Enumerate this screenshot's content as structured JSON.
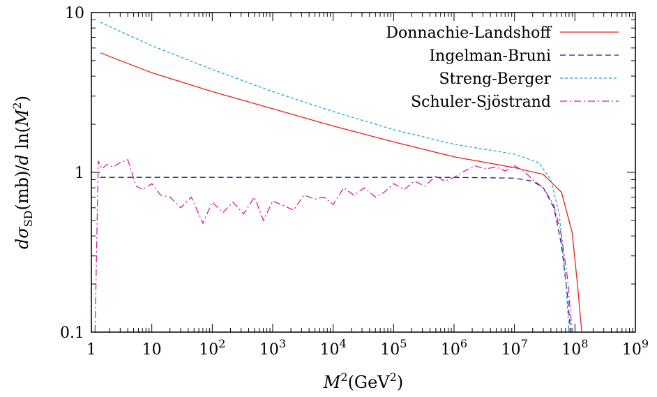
{
  "chart_data": {
    "type": "line",
    "xlabel": "M²(GeV²)",
    "ylabel": "dσSD(mb)/d ln(M²)",
    "x_scale": "log",
    "y_scale": "log",
    "xlim": [
      1,
      1000000000
    ],
    "ylim": [
      0.1,
      10
    ],
    "legend": "top-right",
    "grid": false,
    "x_ticks": [
      {
        "value": 1,
        "label": "1"
      },
      {
        "value": 10,
        "label": "10"
      },
      {
        "value": 100,
        "label": "10",
        "sup": "2"
      },
      {
        "value": 1000,
        "label": "10",
        "sup": "3"
      },
      {
        "value": 10000,
        "label": "10",
        "sup": "4"
      },
      {
        "value": 100000,
        "label": "10",
        "sup": "5"
      },
      {
        "value": 1000000,
        "label": "10",
        "sup": "6"
      },
      {
        "value": 10000000,
        "label": "10",
        "sup": "7"
      },
      {
        "value": 100000000,
        "label": "10",
        "sup": "8"
      },
      {
        "value": 1000000000,
        "label": "10",
        "sup": "9"
      }
    ],
    "y_ticks": [
      {
        "value": 0.1,
        "label": "0.1"
      },
      {
        "value": 1,
        "label": "1"
      },
      {
        "value": 10,
        "label": "10"
      }
    ],
    "series": [
      {
        "name": "Donnachie-Landshoff",
        "color": "#e8201a",
        "dash": "none",
        "x": [
          1.4,
          10,
          100,
          1000,
          10000,
          100000,
          1000000,
          10000000,
          30000000,
          60000000,
          90000000,
          110000000,
          130000000
        ],
        "y": [
          5.6,
          4.2,
          3.2,
          2.5,
          1.95,
          1.55,
          1.25,
          1.07,
          0.97,
          0.75,
          0.42,
          0.2,
          0.1
        ]
      },
      {
        "name": "Ingelman-Bruni",
        "color": "#1f1a8c",
        "dash": "8,5",
        "x": [
          1.4,
          10,
          100,
          1000,
          10000,
          100000,
          1000000,
          10000000,
          20000000,
          30000000,
          45000000,
          60000000,
          75000000,
          85000000
        ],
        "y": [
          0.93,
          0.93,
          0.93,
          0.93,
          0.93,
          0.93,
          0.93,
          0.92,
          0.88,
          0.8,
          0.6,
          0.35,
          0.17,
          0.1
        ]
      },
      {
        "name": "Streng-Berger",
        "color": "#19a8d8",
        "dash": "4,3",
        "x": [
          1.4,
          10,
          100,
          1000,
          10000,
          100000,
          1000000,
          10000000,
          25000000,
          40000000,
          55000000,
          70000000,
          80000000
        ],
        "y": [
          8.7,
          6.2,
          4.4,
          3.2,
          2.4,
          1.85,
          1.5,
          1.3,
          1.15,
          0.9,
          0.55,
          0.22,
          0.1
        ]
      },
      {
        "name": "Schuler-Sjöstrand",
        "color": "#d81a9c",
        "dash": "10,4,2,4",
        "x": [
          1.15,
          1.3,
          1.5,
          1.8,
          2.3,
          3,
          4,
          5.5,
          7,
          10,
          14,
          20,
          30,
          45,
          70,
          100,
          150,
          220,
          330,
          500,
          700,
          1000,
          1500,
          2200,
          3300,
          5000,
          7000,
          10000,
          15000,
          22000,
          33000,
          50000,
          70000,
          100000,
          150000,
          220000,
          330000,
          500000,
          700000,
          1000000,
          1500000,
          2200000,
          3300000,
          5000000,
          7000000,
          10000000,
          15000000,
          20000000,
          30000000,
          45000000,
          60000000,
          75000000,
          90000000
        ],
        "y": [
          0.1,
          1.18,
          1.05,
          1.12,
          1.08,
          1.15,
          1.2,
          0.82,
          0.78,
          0.85,
          0.72,
          0.7,
          0.6,
          0.7,
          0.48,
          0.65,
          0.56,
          0.65,
          0.55,
          0.7,
          0.5,
          0.66,
          0.62,
          0.58,
          0.72,
          0.68,
          0.7,
          0.63,
          0.8,
          0.72,
          0.8,
          0.7,
          0.75,
          0.85,
          0.78,
          0.88,
          0.82,
          0.95,
          0.88,
          0.93,
          1.02,
          1.1,
          1.05,
          1.08,
          1.02,
          1.1,
          1.0,
          0.9,
          0.8,
          0.62,
          0.4,
          0.22,
          0.1
        ]
      }
    ]
  }
}
